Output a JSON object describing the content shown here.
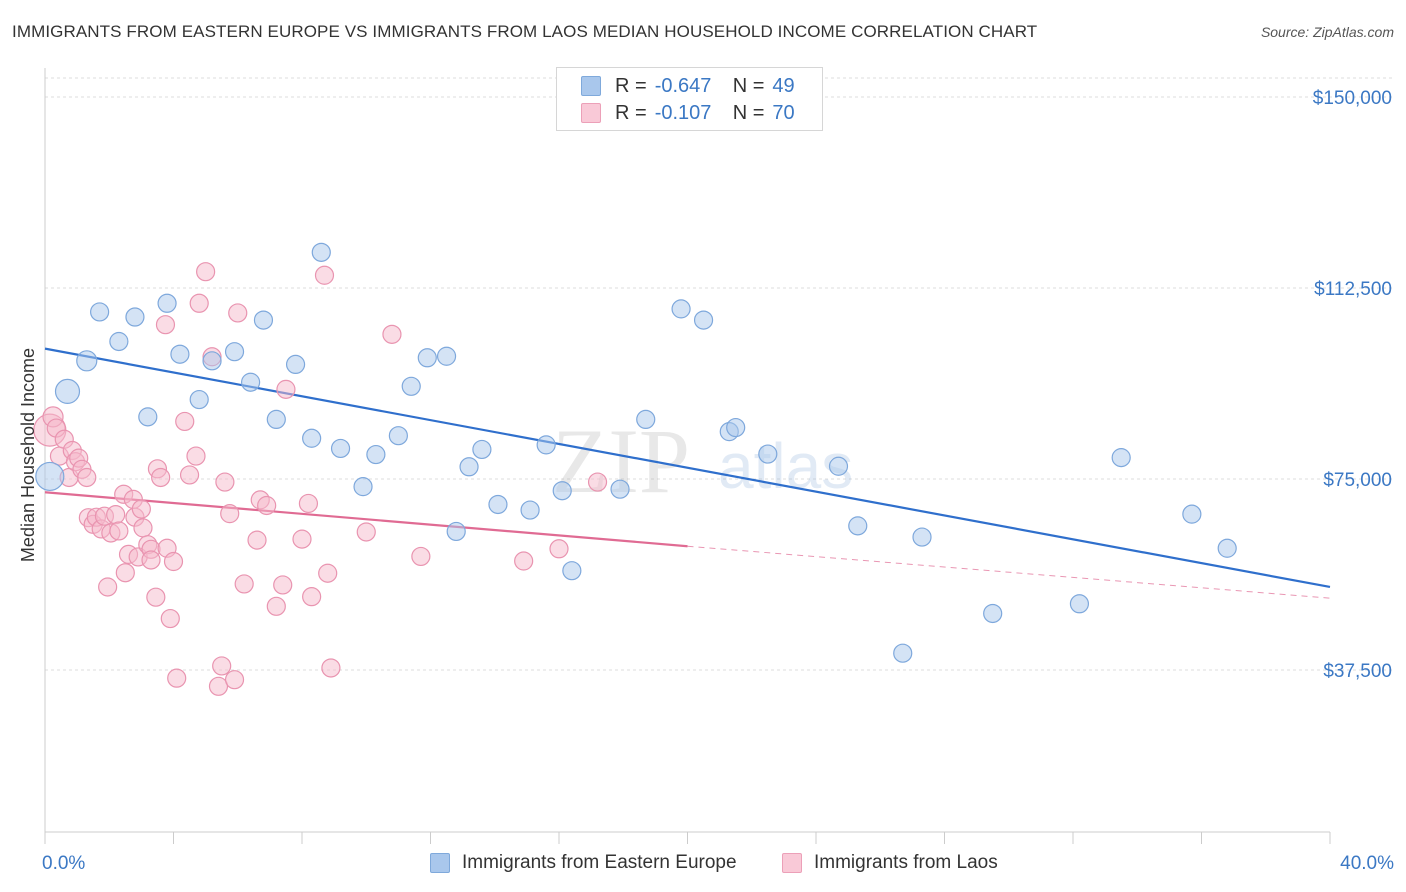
{
  "header": {
    "title": "IMMIGRANTS FROM EASTERN EUROPE VS IMMIGRANTS FROM LAOS MEDIAN HOUSEHOLD INCOME CORRELATION CHART",
    "source": "Source: ZipAtlas.com"
  },
  "watermark": {
    "zip": "ZIP",
    "atlas": "atlas"
  },
  "legend": {
    "rows": [
      {
        "r_label": "R =",
        "r_value": "-0.647",
        "n_label": "N =",
        "n_value": "49"
      },
      {
        "r_label": "R =",
        "r_value": "-0.107",
        "n_label": "N =",
        "n_value": "70"
      }
    ]
  },
  "chart_data": {
    "type": "scatter",
    "title": "IMMIGRANTS FROM EASTERN EUROPE VS IMMIGRANTS FROM LAOS MEDIAN HOUSEHOLD INCOME CORRELATION CHART",
    "ylabel": "Median Household Income",
    "x_tick_labels": [
      "0.0%",
      "40.0%"
    ],
    "y_tick_labels": [
      "$150,000",
      "$112,500",
      "$75,000",
      "$37,500"
    ],
    "y_ticks": [
      150000,
      112500,
      75000,
      37500
    ],
    "xlim": [
      0,
      40
    ],
    "ylim": [
      0,
      155000
    ],
    "grid": true,
    "colors": {
      "eastern_europe_fill": "#a9c7ec",
      "eastern_europe_line": "#2f6fcc",
      "laos_fill": "#f6b9cc",
      "laos_line": "#e06b93",
      "axis_label": "#3b78c4"
    },
    "series": [
      {
        "name": "Immigrants from Eastern Europe",
        "color": "#a9c7ec",
        "trend": {
          "x": [
            0,
            40
          ],
          "y": [
            100600,
            53800
          ],
          "dashed_after": null
        },
        "points": [
          [
            0.15,
            75500
          ],
          [
            0.7,
            92200
          ],
          [
            1.3,
            98200
          ],
          [
            1.7,
            107800
          ],
          [
            2.3,
            102000
          ],
          [
            2.8,
            106800
          ],
          [
            3.2,
            87200
          ],
          [
            3.8,
            109500
          ],
          [
            4.2,
            99500
          ],
          [
            4.8,
            90600
          ],
          [
            5.2,
            98200
          ],
          [
            5.9,
            100000
          ],
          [
            6.4,
            94000
          ],
          [
            6.8,
            106200
          ],
          [
            7.2,
            86700
          ],
          [
            7.8,
            97500
          ],
          [
            8.3,
            83000
          ],
          [
            9.2,
            81000
          ],
          [
            9.9,
            73500
          ],
          [
            10.3,
            79800
          ],
          [
            11.0,
            83500
          ],
          [
            11.4,
            93200
          ],
          [
            11.9,
            98800
          ],
          [
            12.5,
            99100
          ],
          [
            12.8,
            64700
          ],
          [
            13.2,
            77400
          ],
          [
            13.6,
            80800
          ],
          [
            14.1,
            70000
          ],
          [
            8.6,
            119500
          ],
          [
            15.1,
            68900
          ],
          [
            15.6,
            81700
          ],
          [
            16.1,
            72700
          ],
          [
            16.4,
            57000
          ],
          [
            17.9,
            73000
          ],
          [
            18.7,
            86700
          ],
          [
            19.8,
            108400
          ],
          [
            20.5,
            106200
          ],
          [
            21.3,
            84300
          ],
          [
            21.5,
            85100
          ],
          [
            22.5,
            79900
          ],
          [
            24.7,
            77500
          ],
          [
            25.3,
            65800
          ],
          [
            27.3,
            63600
          ],
          [
            29.5,
            48600
          ],
          [
            32.2,
            50500
          ],
          [
            33.5,
            79200
          ],
          [
            35.7,
            68100
          ],
          [
            36.8,
            61400
          ],
          [
            26.7,
            40800
          ]
        ],
        "sizes": [
          26,
          22,
          18,
          16,
          16,
          16,
          16,
          16,
          16,
          16,
          16,
          16,
          16,
          16,
          16,
          16,
          16,
          16,
          16,
          16,
          16,
          16,
          16,
          16,
          16,
          16,
          16,
          16,
          16,
          16,
          16,
          16,
          16,
          16,
          16,
          16,
          16,
          16,
          16,
          16,
          16,
          16,
          16,
          16,
          16,
          16,
          16,
          16,
          16
        ]
      },
      {
        "name": "Immigrants from Laos",
        "color": "#f6b9cc",
        "trend": {
          "x": [
            0,
            20,
            40
          ],
          "y": [
            72400,
            61800,
            51600
          ],
          "solid_until": 20
        },
        "points": [
          [
            0.15,
            84600
          ],
          [
            0.25,
            87200
          ],
          [
            0.35,
            85000
          ],
          [
            0.45,
            79500
          ],
          [
            0.6,
            82800
          ],
          [
            0.75,
            75300
          ],
          [
            0.85,
            80600
          ],
          [
            0.95,
            78400
          ],
          [
            1.05,
            79100
          ],
          [
            1.15,
            76900
          ],
          [
            1.3,
            75300
          ],
          [
            1.35,
            67400
          ],
          [
            1.5,
            66100
          ],
          [
            1.6,
            67500
          ],
          [
            1.75,
            65200
          ],
          [
            1.85,
            67700
          ],
          [
            1.95,
            53800
          ],
          [
            2.05,
            64400
          ],
          [
            2.2,
            68000
          ],
          [
            2.3,
            64800
          ],
          [
            2.45,
            72000
          ],
          [
            2.5,
            56600
          ],
          [
            2.6,
            60200
          ],
          [
            2.75,
            71000
          ],
          [
            2.8,
            67500
          ],
          [
            2.9,
            59700
          ],
          [
            3.0,
            69100
          ],
          [
            3.05,
            65400
          ],
          [
            3.2,
            62100
          ],
          [
            3.3,
            61200
          ],
          [
            3.45,
            51800
          ],
          [
            3.5,
            77000
          ],
          [
            3.6,
            75300
          ],
          [
            3.75,
            105300
          ],
          [
            3.8,
            61400
          ],
          [
            3.9,
            47600
          ],
          [
            4.0,
            58800
          ],
          [
            4.1,
            35900
          ],
          [
            4.35,
            86300
          ],
          [
            4.5,
            75800
          ],
          [
            4.7,
            79500
          ],
          [
            4.8,
            109500
          ],
          [
            5.0,
            115700
          ],
          [
            5.2,
            99000
          ],
          [
            5.4,
            34300
          ],
          [
            5.5,
            38300
          ],
          [
            5.6,
            74400
          ],
          [
            5.75,
            68200
          ],
          [
            5.9,
            35600
          ],
          [
            6.0,
            107600
          ],
          [
            6.2,
            54400
          ],
          [
            6.6,
            63000
          ],
          [
            6.7,
            70900
          ],
          [
            6.9,
            69800
          ],
          [
            7.2,
            50000
          ],
          [
            7.4,
            54200
          ],
          [
            7.5,
            92600
          ],
          [
            8.0,
            63200
          ],
          [
            8.2,
            70200
          ],
          [
            8.3,
            51900
          ],
          [
            8.7,
            115000
          ],
          [
            8.8,
            56500
          ],
          [
            8.9,
            37900
          ],
          [
            10.0,
            64600
          ],
          [
            10.8,
            103400
          ],
          [
            11.7,
            59800
          ],
          [
            14.9,
            58900
          ],
          [
            17.2,
            74400
          ],
          [
            16.0,
            61300
          ],
          [
            3.3,
            59100
          ]
        ],
        "sizes": [
          30,
          18,
          16,
          16,
          16,
          16,
          16,
          16,
          16,
          16,
          16,
          16,
          16,
          16,
          16,
          16,
          16,
          16,
          16,
          16,
          16,
          16,
          16,
          16,
          16,
          16,
          16,
          16,
          16,
          16,
          16,
          16,
          16,
          16,
          16,
          16,
          16,
          16,
          16,
          16,
          16,
          16,
          16,
          16,
          16,
          16,
          16,
          16,
          16,
          16,
          16,
          16,
          16,
          16,
          16,
          16,
          16,
          16,
          16,
          16,
          16,
          16,
          16,
          16,
          16,
          16,
          16,
          16,
          16,
          16
        ]
      }
    ]
  }
}
